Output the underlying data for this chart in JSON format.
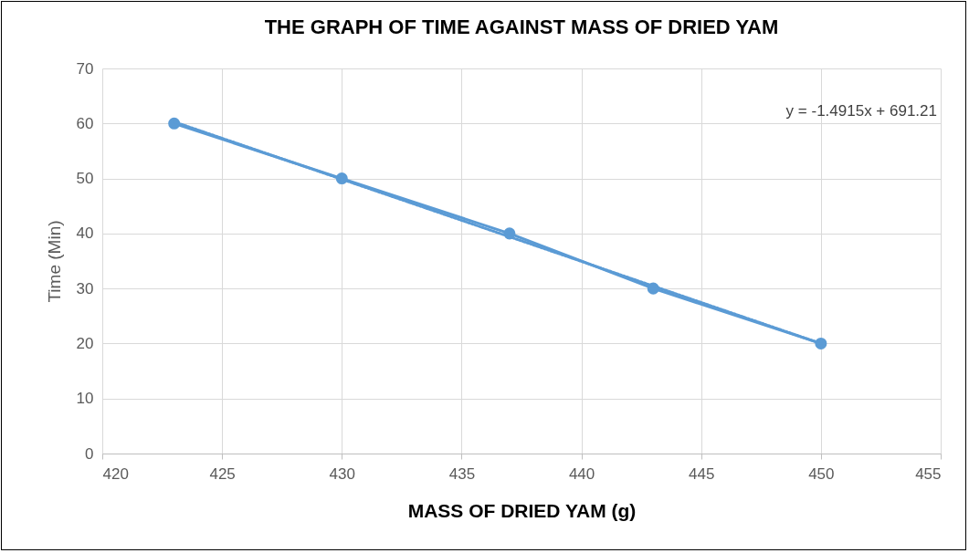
{
  "chart_data": {
    "type": "line",
    "title": "THE GRAPH OF TIME AGAINST MASS OF DRIED YAM",
    "xlabel": "MASS OF DRIED YAM (g)",
    "ylabel": "Time (Min)",
    "x": [
      423,
      430,
      437,
      443,
      450
    ],
    "series": [
      {
        "color": "#5b9bd5",
        "marker": "circle",
        "values": [
          60,
          50,
          40,
          30,
          20
        ]
      },
      {
        "color": "#5b9bd5",
        "line_style": "dotted",
        "marker": "none",
        "x": [
          423,
          450
        ],
        "values": [
          60.3,
          20.0
        ]
      }
    ],
    "annotations": [
      "y = -1.4915x + 691.21"
    ],
    "xlim": [
      420,
      455
    ],
    "xticks": [
      420,
      425,
      430,
      435,
      440,
      445,
      450,
      455
    ],
    "ylim": [
      0,
      70
    ],
    "yticks": [
      0,
      10,
      20,
      30,
      40,
      50,
      60,
      70
    ],
    "grid": true
  }
}
